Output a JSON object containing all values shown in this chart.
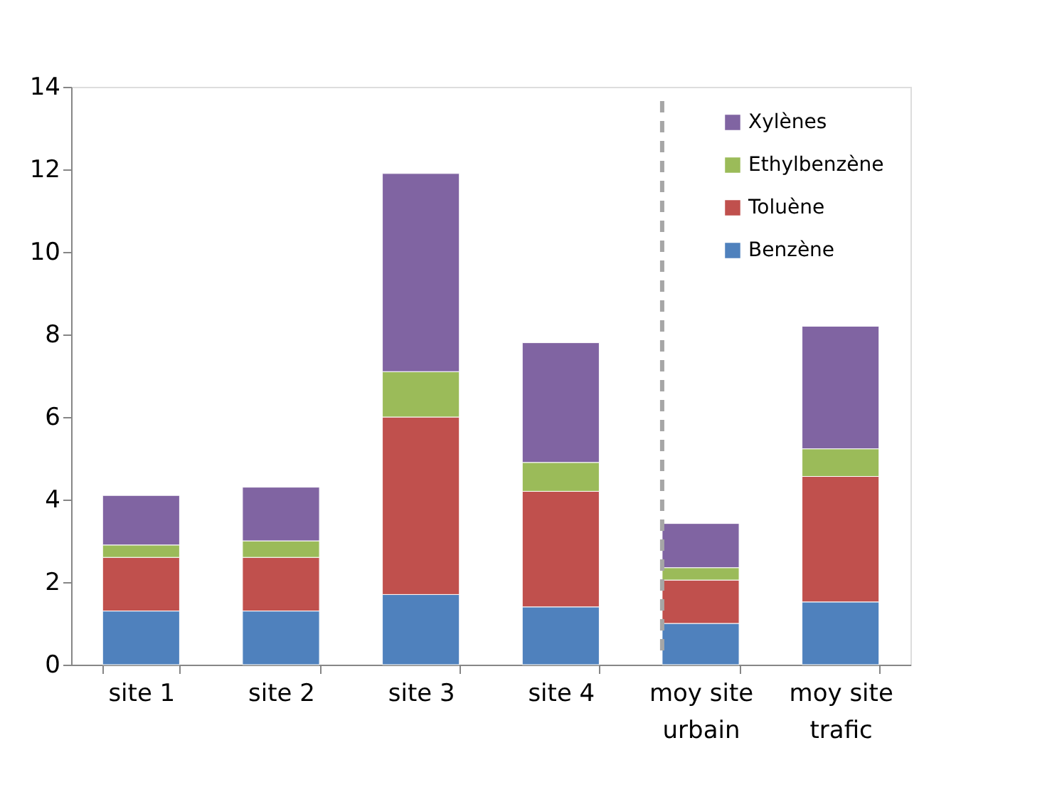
{
  "chart_data": {
    "type": "bar",
    "stacked": true,
    "categories": [
      "site 1",
      "site 2",
      "site 3",
      "site 4",
      "moy site urbain",
      "moy site trafic"
    ],
    "series": [
      {
        "name": "Benzène",
        "color": "#4f81bd",
        "values": [
          1.3,
          1.3,
          1.7,
          1.4,
          1.0,
          1.52
        ]
      },
      {
        "name": "Toluène",
        "color": "#c0504d",
        "values": [
          1.3,
          1.3,
          4.3,
          2.8,
          1.05,
          3.04
        ]
      },
      {
        "name": "Ethylbenzène",
        "color": "#9bbb59",
        "values": [
          0.3,
          0.4,
          1.1,
          0.7,
          0.3,
          0.67
        ]
      },
      {
        "name": "Xylènes",
        "color": "#8064a2",
        "values": [
          1.2,
          1.3,
          4.8,
          2.9,
          1.07,
          2.97
        ]
      }
    ],
    "ylim": [
      0,
      14
    ],
    "yticks": [
      0,
      2,
      4,
      6,
      8,
      10,
      12,
      14
    ],
    "grid": false,
    "legend": "top right",
    "ref_lines": [
      {
        "axis": "x",
        "value": "moy site urbain",
        "color": "#a6a6a6",
        "line_style": "dashed"
      }
    ]
  }
}
